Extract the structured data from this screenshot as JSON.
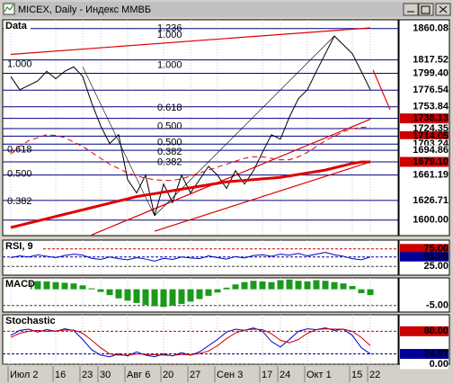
{
  "window_title": "MICEX, Daily - Индекс ММВБ",
  "chart_data": [
    {
      "type": "line",
      "title": "Data",
      "categories": [
        "Июл 2",
        null,
        null,
        null,
        null,
        "16",
        null,
        null,
        "23",
        null,
        "30",
        null,
        null,
        "Авг 6",
        null,
        null,
        null,
        "20",
        null,
        null,
        "27",
        null,
        null,
        "Сен 3",
        null,
        null,
        null,
        null,
        "17",
        null,
        "24",
        null,
        null,
        "Окт 1",
        null,
        null,
        null,
        null,
        "15",
        null,
        "22"
      ],
      "series": [
        {
          "color": "#000000",
          "values": [
            1795,
            1777,
            1783,
            1789,
            1802,
            1792,
            1802,
            1808,
            1795,
            1759,
            1728,
            1704,
            1716,
            1655,
            1637,
            1661,
            1606,
            1649,
            1624,
            1661,
            1637,
            1655,
            1673,
            1661,
            1643,
            1667,
            1649,
            1667,
            1692,
            1716,
            1710,
            1740,
            1765,
            1777,
            1802,
            1826,
            1850,
            1838,
            1826,
            1802,
            1777
          ]
        },
        {
          "color": "#e00000",
          "width": 3,
          "values": [
            1590,
            1593,
            1596,
            1599,
            1602,
            1605,
            1608,
            1611,
            1614,
            1617,
            1620,
            1623,
            1626,
            1629,
            1632,
            1634,
            1636,
            1638,
            1640,
            1642,
            1644,
            1646,
            1648,
            1650,
            1652,
            1653,
            1654,
            1655,
            1656,
            1657,
            1658,
            1660,
            1662,
            1664,
            1666,
            1668,
            1671,
            1674,
            1677,
            1679,
            1679
          ]
        },
        {
          "color": "#e00000",
          "dash": true,
          "values": [
            1690,
            1700,
            1708,
            1712,
            1716,
            1715,
            1712,
            1706,
            1700,
            1692,
            1684,
            1676,
            1670,
            1664,
            1660,
            1657,
            1655,
            1654,
            1654,
            1656,
            1660,
            1664,
            1668,
            1672,
            1676,
            1680,
            1684,
            1686,
            1686,
            1684,
            1682,
            1682,
            1686,
            1692,
            1700,
            1708,
            1714,
            1720,
            1724,
            1726,
            1726
          ]
        }
      ],
      "trendlines": [
        {
          "color": "#e00000",
          "x": [
            0,
            40
          ],
          "values": [
            1825,
            1861
          ]
        },
        {
          "color": "#e00000",
          "x": [
            9,
            40
          ],
          "values": [
            1580,
            1737
          ]
        },
        {
          "color": "#e00000",
          "x": [
            16,
            40
          ],
          "values": [
            1585,
            1679
          ]
        },
        {
          "color": "#000000",
          "x": [
            8,
            16
          ],
          "values": [
            1808,
            1606
          ]
        },
        {
          "color": "#000000",
          "x": [
            16,
            36
          ],
          "values": [
            1606,
            1850
          ]
        },
        {
          "color": "#e00000",
          "x": [
            40.3,
            42.2
          ],
          "values": [
            1804,
            1750
          ]
        }
      ],
      "annotations": [
        {
          "text": "1.236",
          "x": 16.3,
          "y": 1853
        },
        {
          "text": "1.000",
          "x": 16.3,
          "y": 1844
        },
        {
          "text": "1.000",
          "x": -0.4,
          "y": 1804
        },
        {
          "text": "1.000",
          "x": 16.3,
          "y": 1803
        },
        {
          "text": "0.618",
          "x": 16.3,
          "y": 1745
        },
        {
          "text": "0.500",
          "x": 16.3,
          "y": 1720
        },
        {
          "text": "0.500",
          "x": 16.3,
          "y": 1698
        },
        {
          "text": "0.382",
          "x": 16.3,
          "y": 1685
        },
        {
          "text": "0.382",
          "x": 16.3,
          "y": 1671
        },
        {
          "text": "0.618",
          "x": -0.4,
          "y": 1688
        },
        {
          "text": "0.500",
          "x": -0.4,
          "y": 1655
        },
        {
          "text": "0.382",
          "x": -0.4,
          "y": 1618
        }
      ],
      "ylim": [
        1579,
        1872
      ],
      "yticks": [
        1860.08,
        1817.52,
        {
          "value": 1799.4,
          "label": "1799.40"
        },
        1776.54,
        1753.84,
        {
          "value": 1738.13,
          "label": "1738.13",
          "color": "#cc0000"
        },
        1724.35,
        {
          "value": 1714.05,
          "label": "1714.05",
          "color": "#cc0000"
        },
        1703.24,
        1694.86,
        {
          "value": 1679.1,
          "label": "1679.10",
          "color": "#cc0000"
        },
        1661.19,
        1626.71,
        {
          "value": 1600,
          "label": "1600.00"
        }
      ]
    },
    {
      "type": "line",
      "title": "RSI, 9",
      "series": [
        {
          "color": "#0000cc",
          "values": [
            50,
            55,
            52,
            58,
            54,
            50,
            56,
            60,
            57,
            48,
            45,
            52,
            47,
            44,
            50,
            46,
            40,
            48,
            45,
            52,
            49,
            47,
            55,
            50,
            46,
            53,
            49,
            56,
            58,
            54,
            60,
            57,
            62,
            55,
            60,
            65,
            58,
            54,
            47,
            44,
            51.95
          ]
        }
      ],
      "ylim": [
        0,
        100
      ],
      "yticks": [
        {
          "value": 75,
          "label": "75.00",
          "color": "#cc0000"
        },
        {
          "value": 51.95,
          "label": "51.95",
          "color": "#000099"
        },
        {
          "value": 25,
          "label": "25.00"
        }
      ]
    },
    {
      "type": "bar",
      "title": "MACD",
      "color": "#1a9a1a",
      "values": [
        1.5,
        2,
        2.2,
        2.5,
        2.4,
        2.2,
        2,
        1.8,
        1.2,
        0.3,
        -0.8,
        -1.8,
        -2.8,
        -3.5,
        -4.2,
        -4.8,
        -5.2,
        -5.4,
        -5,
        -4.5,
        -3.8,
        -3,
        -2,
        -1,
        0.5,
        1.5,
        2.2,
        2.6,
        2.4,
        2.2,
        2.8,
        3,
        2.6,
        2.4,
        2.8,
        2.6,
        2.2,
        1.8,
        1,
        -1.2,
        -1.8
      ],
      "ylim": [
        -7,
        3.5
      ],
      "yticks": [
        {
          "value": -5,
          "label": "-5.00"
        }
      ]
    },
    {
      "type": "line",
      "title": "Stochastic",
      "series": [
        {
          "color": "#0000cc",
          "values": [
            70,
            82,
            85,
            78,
            84,
            80,
            86,
            82,
            60,
            35,
            22,
            18,
            25,
            20,
            30,
            22,
            18,
            25,
            20,
            28,
            22,
            30,
            45,
            60,
            78,
            85,
            82,
            88,
            80,
            55,
            42,
            60,
            80,
            86,
            84,
            88,
            82,
            85,
            70,
            40,
            24.97
          ]
        },
        {
          "color": "#cc0000",
          "values": [
            65,
            75,
            80,
            82,
            80,
            81,
            83,
            83,
            75,
            58,
            40,
            25,
            22,
            22,
            25,
            24,
            23,
            22,
            21,
            24,
            23,
            26,
            32,
            45,
            62,
            76,
            83,
            85,
            84,
            74,
            58,
            52,
            60,
            75,
            84,
            86,
            85,
            85,
            80,
            65,
            45
          ]
        }
      ],
      "ylim": [
        0,
        120
      ],
      "yticks": [
        {
          "value": 80,
          "label": "80.00",
          "color": "#cc0000"
        },
        {
          "value": 24.97,
          "label": "24.97",
          "color": "#000099"
        },
        {
          "value": 0,
          "label": "0.00"
        }
      ]
    }
  ]
}
